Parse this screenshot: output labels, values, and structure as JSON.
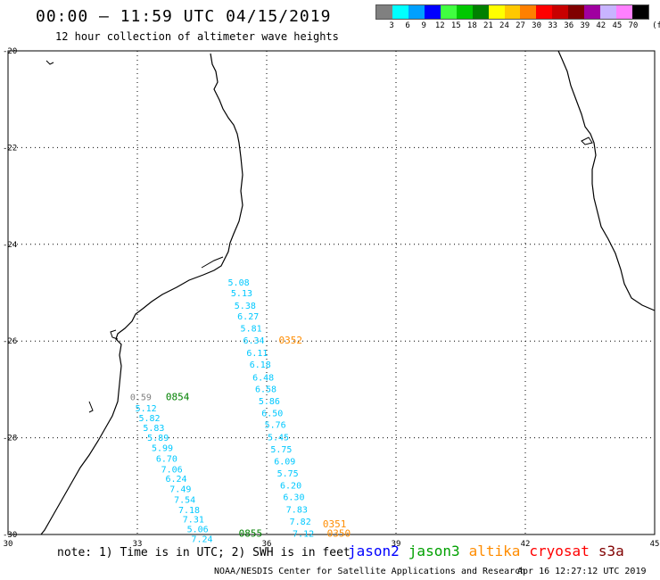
{
  "header": {
    "title": "00:00 – 11:59 UTC 04/15/2019",
    "subtitle": "12 hour collection of altimeter wave heights"
  },
  "legend": {
    "unit": "(ft)",
    "bins": [
      {
        "label": "3",
        "color": "#808080"
      },
      {
        "label": "6",
        "color": "#00ffff"
      },
      {
        "label": "9",
        "color": "#00a0ff"
      },
      {
        "label": "12",
        "color": "#0000ff"
      },
      {
        "label": "15",
        "color": "#40ff40"
      },
      {
        "label": "18",
        "color": "#00c800"
      },
      {
        "label": "21",
        "color": "#008000"
      },
      {
        "label": "24",
        "color": "#ffff00"
      },
      {
        "label": "27",
        "color": "#ffc800"
      },
      {
        "label": "30",
        "color": "#ff8000"
      },
      {
        "label": "33",
        "color": "#ff0000"
      },
      {
        "label": "36",
        "color": "#c80000"
      },
      {
        "label": "39",
        "color": "#800000"
      },
      {
        "label": "42",
        "color": "#a000a0"
      },
      {
        "label": "45",
        "color": "#c8b4ff"
      },
      {
        "label": "70",
        "color": "#ff80ff"
      },
      {
        "label": "",
        "color": "#000000"
      }
    ]
  },
  "map": {
    "lon_ticks": [
      "30",
      "33",
      "36",
      "39",
      "42",
      "45"
    ],
    "lat_ticks": [
      "-20",
      "-22",
      "-24",
      "-26",
      "-28",
      "-30"
    ],
    "tracks": [
      {
        "satellite": "altika",
        "color": "#00c8ff",
        "times": [
          {
            "label": "0352",
            "at": 5,
            "color": "#ff8c00"
          }
        ],
        "points": [
          {
            "lon": 35.35,
            "lat": -24.78,
            "swh": "5.08"
          },
          {
            "lon": 35.42,
            "lat": -25.0,
            "swh": "5.13"
          },
          {
            "lon": 35.5,
            "lat": -25.26,
            "swh": "5.38"
          },
          {
            "lon": 35.57,
            "lat": -25.48,
            "swh": "6.27"
          },
          {
            "lon": 35.64,
            "lat": -25.73,
            "swh": "5.81"
          },
          {
            "lon": 35.7,
            "lat": -25.98,
            "swh": "6.34"
          },
          {
            "lon": 35.78,
            "lat": -26.24,
            "swh": "6.11"
          },
          {
            "lon": 35.85,
            "lat": -26.48,
            "swh": "6.18"
          },
          {
            "lon": 35.92,
            "lat": -26.74,
            "swh": "6.48"
          },
          {
            "lon": 35.98,
            "lat": -26.98,
            "swh": "6.58"
          },
          {
            "lon": 36.06,
            "lat": -27.23,
            "swh": "5.86"
          },
          {
            "lon": 36.13,
            "lat": -27.48,
            "swh": "6.50"
          },
          {
            "lon": 36.2,
            "lat": -27.72,
            "swh": "5.76"
          },
          {
            "lon": 36.27,
            "lat": -27.98,
            "swh": "5.45"
          },
          {
            "lon": 36.34,
            "lat": -28.23,
            "swh": "5.75"
          },
          {
            "lon": 36.42,
            "lat": -28.48,
            "swh": "6.09"
          },
          {
            "lon": 36.49,
            "lat": -28.73,
            "swh": "5.75"
          },
          {
            "lon": 36.56,
            "lat": -28.98,
            "swh": "6.20"
          },
          {
            "lon": 36.63,
            "lat": -29.22,
            "swh": "6.30"
          },
          {
            "lon": 36.7,
            "lat": -29.47,
            "swh": "7.83"
          },
          {
            "lon": 36.78,
            "lat": -29.72,
            "swh": "7.82"
          },
          {
            "lon": 36.85,
            "lat": -29.97,
            "swh": "7.12"
          }
        ]
      },
      {
        "satellite": "jason3",
        "color": "#00c8ff",
        "times": [
          {
            "label": "0854",
            "at": 0,
            "color": "#008000"
          }
        ],
        "points": [
          {
            "lon": 33.08,
            "lat": -27.15,
            "swh": "0.59",
            "color": "#808080"
          },
          {
            "lon": 33.2,
            "lat": -27.38,
            "swh": "5.12"
          },
          {
            "lon": 33.28,
            "lat": -27.58,
            "swh": "5.82"
          },
          {
            "lon": 33.38,
            "lat": -27.79,
            "swh": "5.83"
          },
          {
            "lon": 33.48,
            "lat": -27.99,
            "swh": "5.89"
          },
          {
            "lon": 33.58,
            "lat": -28.2,
            "swh": "5.99"
          },
          {
            "lon": 33.68,
            "lat": -28.42,
            "swh": "6.70"
          },
          {
            "lon": 33.8,
            "lat": -28.64,
            "swh": "7.06"
          },
          {
            "lon": 33.9,
            "lat": -28.84,
            "swh": "6.24"
          },
          {
            "lon": 34.0,
            "lat": -29.05,
            "swh": "7.49"
          },
          {
            "lon": 34.1,
            "lat": -29.27,
            "swh": "7.54"
          },
          {
            "lon": 34.2,
            "lat": -29.48,
            "swh": "7.18"
          },
          {
            "lon": 34.3,
            "lat": -29.68,
            "swh": "7.31"
          },
          {
            "lon": 34.4,
            "lat": -29.88,
            "swh": "5.06"
          },
          {
            "lon": 34.5,
            "lat": -30.08,
            "swh": "7.24"
          }
        ]
      }
    ],
    "extra_times": [
      {
        "label": "0855",
        "lon": 35.35,
        "lat": -29.97,
        "color": "#008000"
      },
      {
        "label": "0351",
        "lon": 37.3,
        "lat": -29.78,
        "color": "#ff8c00"
      },
      {
        "label": "0350",
        "lon": 37.4,
        "lat": -29.97,
        "color": "#ff8c00"
      }
    ]
  },
  "footer": {
    "note": "note: 1) Time is in UTC; 2) SWH is in feet",
    "satellites": [
      {
        "name": "jason2",
        "color": "#0000ff"
      },
      {
        "name": "jason3",
        "color": "#00a000"
      },
      {
        "name": "altika",
        "color": "#ff8c00"
      },
      {
        "name": "cryosat",
        "color": "#ff0000"
      },
      {
        "name": "s3a",
        "color": "#800000"
      }
    ],
    "credit": "NOAA/NESDIS Center for Satellite Applications and Research",
    "timestamp": "Apr 16 12:27:12 UTC 2019"
  }
}
